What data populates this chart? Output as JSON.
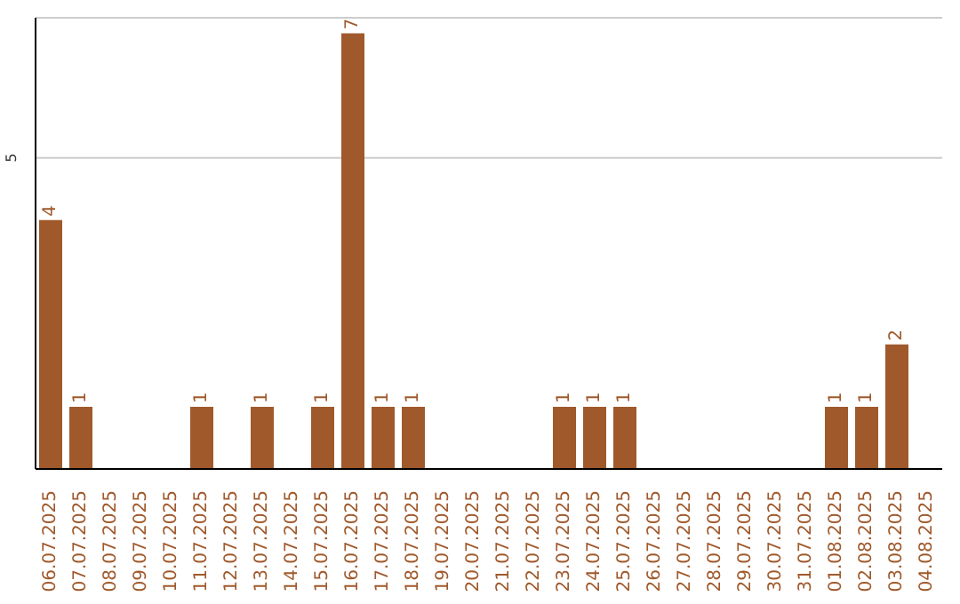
{
  "chart_data": {
    "type": "bar",
    "categories": [
      "06.07.2025",
      "07.07.2025",
      "08.07.2025",
      "09.07.2025",
      "10.07.2025",
      "11.07.2025",
      "12.07.2025",
      "13.07.2025",
      "14.07.2025",
      "15.07.2025",
      "16.07.2025",
      "17.07.2025",
      "18.07.2025",
      "19.07.2025",
      "20.07.2025",
      "21.07.2025",
      "22.07.2025",
      "23.07.2025",
      "24.07.2025",
      "25.07.2025",
      "26.07.2025",
      "27.07.2025",
      "28.07.2025",
      "29.07.2025",
      "30.07.2025",
      "31.07.2025",
      "01.08.2025",
      "02.08.2025",
      "03.08.2025",
      "04.08.2025"
    ],
    "values": [
      4,
      1,
      0,
      0,
      0,
      1,
      0,
      1,
      0,
      1,
      7,
      1,
      1,
      0,
      0,
      0,
      0,
      1,
      1,
      1,
      0,
      0,
      0,
      0,
      0,
      0,
      1,
      1,
      2,
      0
    ],
    "value_labels": [
      "4",
      "1",
      null,
      null,
      null,
      "1",
      null,
      "1",
      null,
      "1",
      "7",
      "1",
      "1",
      null,
      null,
      null,
      null,
      "1",
      "1",
      "1",
      null,
      null,
      null,
      null,
      null,
      null,
      "1",
      "1",
      "2",
      null
    ],
    "color": "#a0592b",
    "ylim": [
      0,
      7.25
    ],
    "yticks": [
      5
    ],
    "grid": "y"
  }
}
